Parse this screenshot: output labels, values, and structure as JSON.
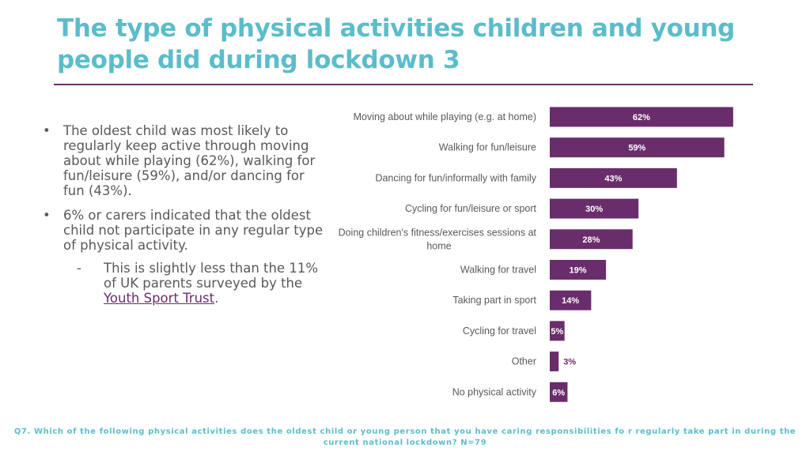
{
  "title": "The type of physical activities children and young people did during lockdown 3",
  "bullets": {
    "b1": "The oldest child was most likely to regularly keep active through moving about while playing (62%), walking for fun/leisure (59%), and/or dancing for fun (43%).",
    "b2": "6% or carers indicated that the oldest child not participate in any regular type of physical activity.",
    "sub_pre": "This is slightly less than the 11% of UK parents surveyed by the ",
    "sub_link": "Youth Sport Trust",
    "sub_post": ".",
    "bullet_symbol": "•",
    "dash_symbol": "-"
  },
  "chart_data": {
    "type": "bar",
    "orientation": "horizontal",
    "categories": [
      "Moving about while playing (e.g. at home)",
      "Walking for fun/leisure",
      "Dancing for fun/informally with family",
      "Cycling for fun/leisure or sport",
      "Doing children's fitness/exercises sessions at home",
      "Walking for travel",
      "Taking part in sport",
      "Cycling for travel",
      "Other",
      "No physical activity"
    ],
    "values": [
      62,
      59,
      43,
      30,
      28,
      19,
      14,
      5,
      3,
      6
    ],
    "labels": [
      "62%",
      "59%",
      "43%",
      "30%",
      "28%",
      "19%",
      "14%",
      "5%",
      "3%",
      "6%"
    ],
    "xlim": [
      0,
      100
    ],
    "grid": false,
    "bar_color": "#6a2d6b"
  },
  "footnote": "Q7. Which of the following physical activities does the oldest child or young person that you have caring responsibilities fo r regularly take part in during the current national lockdown? N=79"
}
